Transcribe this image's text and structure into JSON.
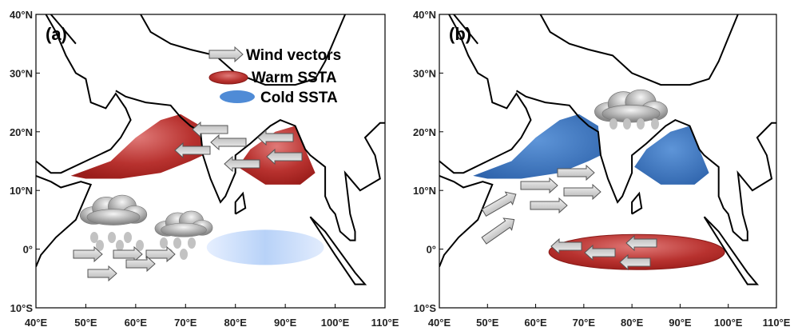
{
  "panels": [
    {
      "label": "(a)",
      "legend": [
        "Wind vectors",
        "Warm SSTA",
        "Cold SSTA"
      ],
      "lat_ticks": [
        "40°N",
        "30°N",
        "20°N",
        "10°N",
        "0°",
        "10°S"
      ],
      "lon_ticks": [
        "40°E",
        "50°E",
        "60°E",
        "70°E",
        "80°E",
        "90°E",
        "100°E",
        "110°E"
      ]
    },
    {
      "label": "(b)",
      "lat_ticks": [
        "40°N",
        "30°N",
        "20°N",
        "10°N",
        "0°",
        "10°S"
      ],
      "lon_ticks": [
        "40°E",
        "50°E",
        "60°E",
        "70°E",
        "80°E",
        "90°E",
        "100°E",
        "110°E"
      ]
    }
  ]
}
